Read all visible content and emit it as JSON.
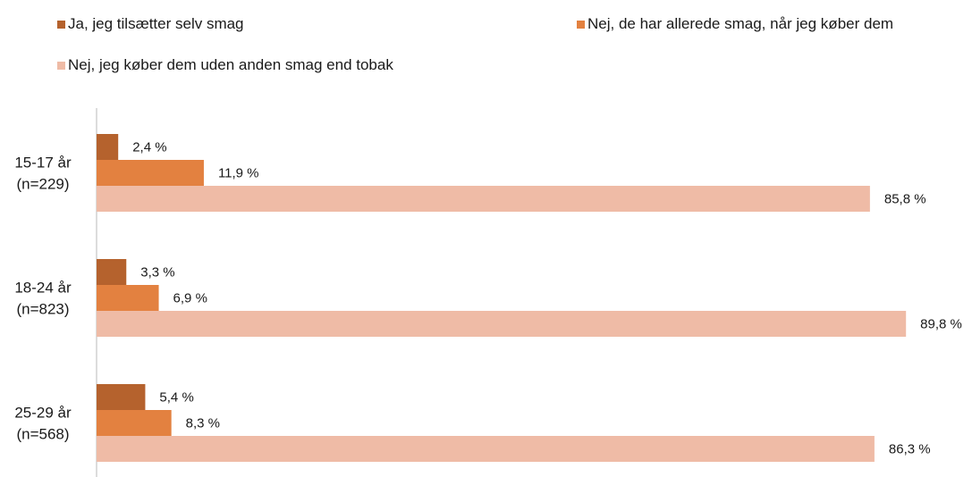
{
  "chart_data": {
    "type": "bar",
    "orientation": "horizontal",
    "categories": [
      [
        "15-17 år",
        "(n=229)"
      ],
      [
        "18-24 år",
        "(n=823)"
      ],
      [
        "25-29 år",
        "(n=568)"
      ]
    ],
    "series": [
      {
        "name": "Ja, jeg tilsætter selv smag",
        "color": "#b5622d",
        "values": [
          2.4,
          3.3,
          5.4
        ],
        "labels": [
          "2,4 %",
          "3,3 %",
          "5,4 %"
        ]
      },
      {
        "name": "Nej, de har allerede smag, når jeg køber dem",
        "color": "#e38140",
        "values": [
          11.9,
          6.9,
          8.3
        ],
        "labels": [
          "11,9 %",
          "6,9 %",
          "8,3 %"
        ]
      },
      {
        "name": "Nej, jeg køber dem uden anden smag end tobak",
        "color": "#efbba6",
        "values": [
          85.8,
          89.8,
          86.3
        ],
        "labels": [
          "85,8 %",
          "89,8 %",
          "86,3 %"
        ]
      }
    ],
    "xlim": [
      0,
      100
    ],
    "grid": false,
    "legend_position": "top"
  }
}
